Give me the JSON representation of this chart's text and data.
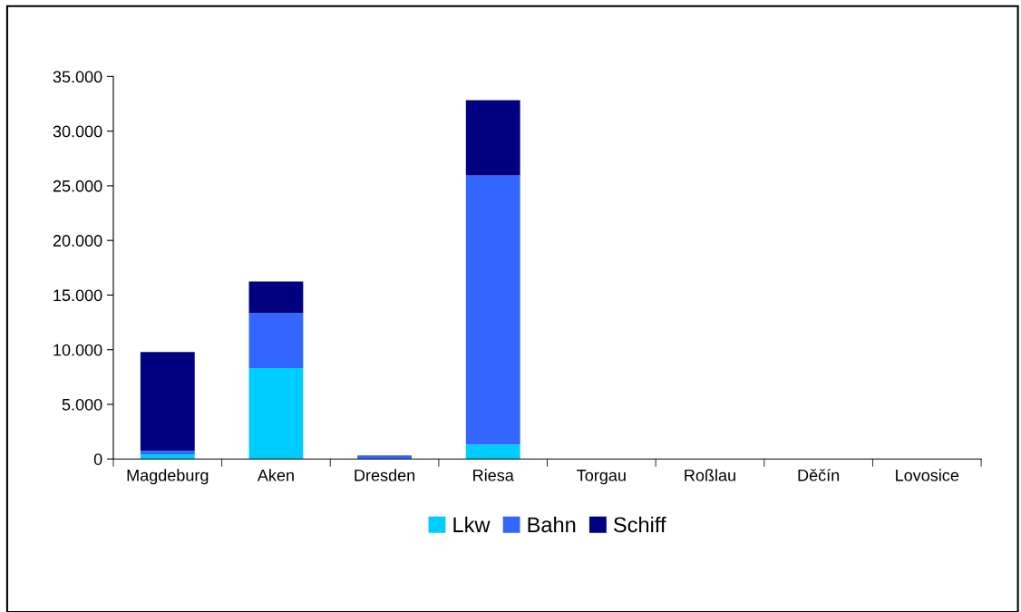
{
  "chart_data": {
    "type": "bar",
    "stacked": true,
    "categories": [
      "Magdeburg",
      "Aken",
      "Dresden",
      "Riesa",
      "Torgau",
      "Roßlau",
      "Děčín",
      "Lovosice"
    ],
    "series": [
      {
        "name": "Lkw",
        "color": "#00ccff",
        "values": [
          440,
          8320,
          0,
          1330,
          0,
          0,
          0,
          0
        ]
      },
      {
        "name": "Bahn",
        "color": "#3366ff",
        "values": [
          310,
          5030,
          330,
          24620,
          0,
          0,
          0,
          0
        ]
      },
      {
        "name": "Schiff",
        "color": "#000080",
        "values": [
          9030,
          2900,
          0,
          6890,
          0,
          0,
          0,
          0
        ]
      }
    ],
    "ylim": [
      0,
      35000
    ],
    "yticks": [
      0,
      {
        "value": 5000,
        "label": "5.000"
      },
      {
        "value": 10000,
        "label": "10.000"
      },
      {
        "value": 15000,
        "label": "15.000"
      },
      {
        "value": 20000,
        "label": "20.000"
      },
      {
        "value": 25000,
        "label": "25.000"
      },
      {
        "value": 30000,
        "label": "30.000"
      },
      {
        "value": 35000,
        "label": "35.000"
      }
    ],
    "grid": false,
    "legend": "bottom"
  }
}
